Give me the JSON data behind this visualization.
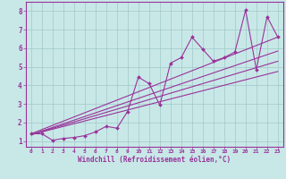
{
  "xlabel": "Windchill (Refroidissement éolien,°C)",
  "xlim": [
    -0.5,
    23.5
  ],
  "ylim": [
    0.7,
    8.5
  ],
  "xticks": [
    0,
    1,
    2,
    3,
    4,
    5,
    6,
    7,
    8,
    9,
    10,
    11,
    12,
    13,
    14,
    15,
    16,
    17,
    18,
    19,
    20,
    21,
    22,
    23
  ],
  "yticks": [
    1,
    2,
    3,
    4,
    5,
    6,
    7,
    8
  ],
  "bg_color": "#c8e8e8",
  "line_color": "#993399",
  "grid_color": "#a0c8c8",
  "series_main": {
    "x": [
      0,
      1,
      2,
      3,
      4,
      5,
      6,
      7,
      8,
      9,
      10,
      11,
      12,
      13,
      14,
      15,
      16,
      17,
      18,
      19,
      20,
      21,
      22,
      23
    ],
    "y": [
      1.4,
      1.4,
      1.05,
      1.15,
      1.2,
      1.3,
      1.5,
      1.8,
      1.7,
      2.6,
      4.45,
      4.1,
      2.95,
      5.2,
      5.5,
      6.6,
      5.95,
      5.3,
      5.5,
      5.8,
      8.05,
      4.85,
      7.7,
      6.6
    ]
  },
  "trend_lines": [
    {
      "x": [
        0,
        23
      ],
      "y": [
        1.4,
        6.6
      ]
    },
    {
      "x": [
        0,
        23
      ],
      "y": [
        1.35,
        5.85
      ]
    },
    {
      "x": [
        0,
        23
      ],
      "y": [
        1.35,
        5.3
      ]
    },
    {
      "x": [
        0,
        23
      ],
      "y": [
        1.35,
        4.75
      ]
    }
  ]
}
